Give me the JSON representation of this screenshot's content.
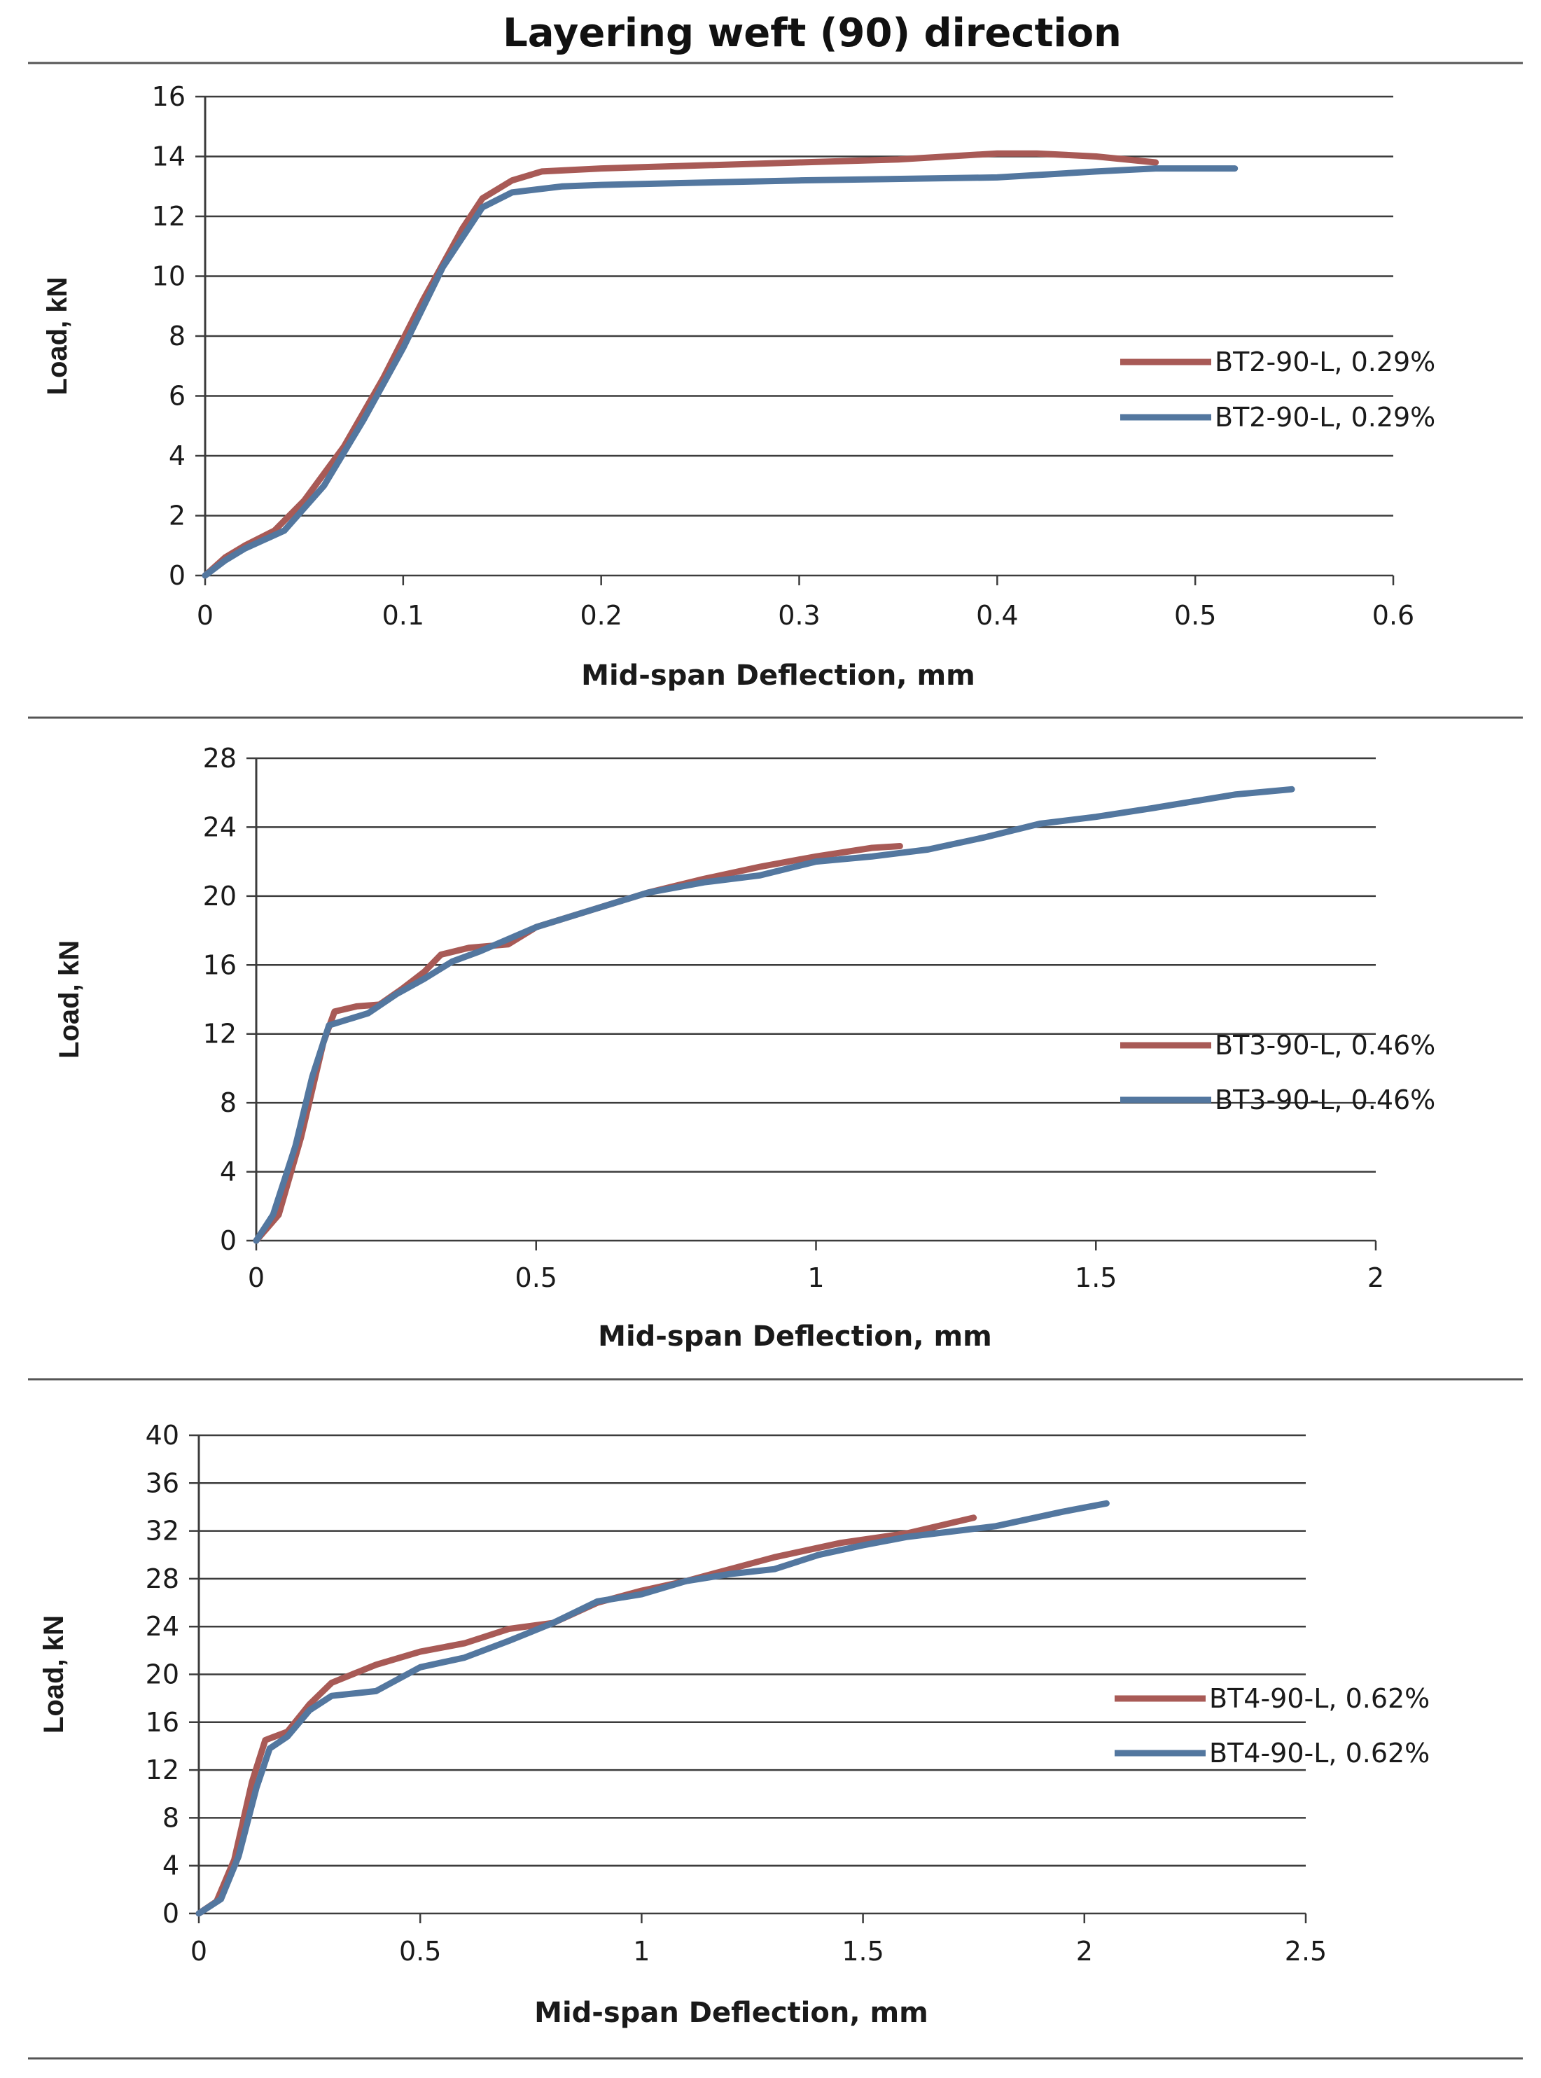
{
  "title": "Layering weft (90) direction",
  "colors": {
    "series1": "#a85a56",
    "series2": "#53779f",
    "grid": "#3c3c3c",
    "divider": "#555555"
  },
  "chart_data": [
    {
      "type": "line",
      "xlabel": "Mid-span Deflection, mm",
      "ylabel": "Load, kN",
      "xlim": [
        0,
        0.6
      ],
      "ylim": [
        0,
        16
      ],
      "xticks": [
        0,
        0.1,
        0.2,
        0.3,
        0.4,
        0.5,
        0.6
      ],
      "xtick_labels": [
        "0",
        "0.1",
        "0.2",
        "0.3",
        "0.4",
        "0.5",
        "0.6"
      ],
      "yticks": [
        0,
        2,
        4,
        6,
        8,
        10,
        12,
        14,
        16
      ],
      "ytick_labels": [
        "0",
        "2",
        "4",
        "6",
        "8",
        "10",
        "12",
        "14",
        "16"
      ],
      "legend_position": "right",
      "series": [
        {
          "name": "BT2-90-L, 0.29%",
          "color": "#a85a56",
          "points": [
            [
              0,
              0
            ],
            [
              0.01,
              0.6
            ],
            [
              0.02,
              1.0
            ],
            [
              0.035,
              1.5
            ],
            [
              0.05,
              2.5
            ],
            [
              0.07,
              4.3
            ],
            [
              0.09,
              6.6
            ],
            [
              0.11,
              9.2
            ],
            [
              0.13,
              11.6
            ],
            [
              0.14,
              12.6
            ],
            [
              0.155,
              13.2
            ],
            [
              0.17,
              13.5
            ],
            [
              0.2,
              13.6
            ],
            [
              0.25,
              13.7
            ],
            [
              0.3,
              13.8
            ],
            [
              0.35,
              13.9
            ],
            [
              0.4,
              14.1
            ],
            [
              0.42,
              14.1
            ],
            [
              0.45,
              14.0
            ],
            [
              0.48,
              13.8
            ]
          ]
        },
        {
          "name": "BT2-90-L, 0.29%",
          "color": "#53779f",
          "points": [
            [
              0,
              0
            ],
            [
              0.01,
              0.5
            ],
            [
              0.02,
              0.9
            ],
            [
              0.04,
              1.5
            ],
            [
              0.06,
              3.0
            ],
            [
              0.08,
              5.2
            ],
            [
              0.1,
              7.6
            ],
            [
              0.12,
              10.3
            ],
            [
              0.14,
              12.3
            ],
            [
              0.155,
              12.8
            ],
            [
              0.18,
              13.0
            ],
            [
              0.2,
              13.05
            ],
            [
              0.3,
              13.2
            ],
            [
              0.4,
              13.3
            ],
            [
              0.45,
              13.5
            ],
            [
              0.48,
              13.6
            ],
            [
              0.52,
              13.6
            ]
          ]
        }
      ]
    },
    {
      "type": "line",
      "xlabel": "Mid-span Deflection, mm",
      "ylabel": "Load, kN",
      "xlim": [
        0,
        2
      ],
      "ylim": [
        0,
        28
      ],
      "xticks": [
        0,
        0.5,
        1,
        1.5,
        2
      ],
      "xtick_labels": [
        "0",
        "0.5",
        "1",
        "1.5",
        "2"
      ],
      "yticks": [
        0,
        4,
        8,
        12,
        16,
        20,
        24,
        28
      ],
      "ytick_labels": [
        "0",
        "4",
        "8",
        "12",
        "16",
        "20",
        "24",
        "28"
      ],
      "legend_position": "right",
      "series": [
        {
          "name": "BT3-90-L, 0.46%",
          "color": "#a85a56",
          "points": [
            [
              0,
              0
            ],
            [
              0.04,
              1.5
            ],
            [
              0.08,
              6.0
            ],
            [
              0.12,
              11.5
            ],
            [
              0.14,
              13.3
            ],
            [
              0.18,
              13.6
            ],
            [
              0.22,
              13.7
            ],
            [
              0.26,
              14.6
            ],
            [
              0.3,
              15.6
            ],
            [
              0.33,
              16.6
            ],
            [
              0.38,
              17.0
            ],
            [
              0.45,
              17.2
            ],
            [
              0.5,
              18.2
            ],
            [
              0.6,
              19.2
            ],
            [
              0.7,
              20.2
            ],
            [
              0.8,
              21.0
            ],
            [
              0.9,
              21.7
            ],
            [
              1.0,
              22.3
            ],
            [
              1.1,
              22.8
            ],
            [
              1.15,
              22.9
            ]
          ]
        },
        {
          "name": "BT3-90-L, 0.46%",
          "color": "#53779f",
          "points": [
            [
              0,
              0
            ],
            [
              0.03,
              1.5
            ],
            [
              0.07,
              5.5
            ],
            [
              0.1,
              9.5
            ],
            [
              0.13,
              12.5
            ],
            [
              0.16,
              12.8
            ],
            [
              0.2,
              13.2
            ],
            [
              0.25,
              14.3
            ],
            [
              0.3,
              15.2
            ],
            [
              0.35,
              16.2
            ],
            [
              0.4,
              16.8
            ],
            [
              0.5,
              18.2
            ],
            [
              0.6,
              19.2
            ],
            [
              0.7,
              20.2
            ],
            [
              0.8,
              20.8
            ],
            [
              0.9,
              21.2
            ],
            [
              1.0,
              22.0
            ],
            [
              1.1,
              22.3
            ],
            [
              1.2,
              22.7
            ],
            [
              1.3,
              23.4
            ],
            [
              1.4,
              24.2
            ],
            [
              1.5,
              24.6
            ],
            [
              1.6,
              25.1
            ],
            [
              1.75,
              25.9
            ],
            [
              1.85,
              26.2
            ]
          ]
        }
      ]
    },
    {
      "type": "line",
      "xlabel": "Mid-span Deflection, mm",
      "ylabel": "Load, kN",
      "xlim": [
        0,
        2.5
      ],
      "ylim": [
        0,
        40
      ],
      "xticks": [
        0,
        0.5,
        1,
        1.5,
        2,
        2.5
      ],
      "xtick_labels": [
        "0",
        "0.5",
        "1",
        "1.5",
        "2",
        "2.5"
      ],
      "yticks": [
        0,
        4,
        8,
        12,
        16,
        20,
        24,
        28,
        32,
        36,
        40
      ],
      "ytick_labels": [
        "0",
        "4",
        "8",
        "12",
        "16",
        "20",
        "24",
        "28",
        "32",
        "36",
        "40"
      ],
      "legend_position": "right",
      "series": [
        {
          "name": "BT4-90-L, 0.62%",
          "color": "#a85a56",
          "points": [
            [
              0,
              0
            ],
            [
              0.04,
              1.0
            ],
            [
              0.08,
              4.5
            ],
            [
              0.12,
              11.0
            ],
            [
              0.15,
              14.5
            ],
            [
              0.2,
              15.2
            ],
            [
              0.25,
              17.5
            ],
            [
              0.3,
              19.3
            ],
            [
              0.4,
              20.8
            ],
            [
              0.5,
              21.9
            ],
            [
              0.6,
              22.6
            ],
            [
              0.7,
              23.8
            ],
            [
              0.8,
              24.3
            ],
            [
              0.9,
              26.0
            ],
            [
              1.0,
              27.0
            ],
            [
              1.1,
              27.8
            ],
            [
              1.2,
              28.8
            ],
            [
              1.3,
              29.8
            ],
            [
              1.45,
              31.0
            ],
            [
              1.6,
              31.8
            ],
            [
              1.75,
              33.1
            ]
          ]
        },
        {
          "name": "BT4-90-L, 0.62%",
          "color": "#53779f",
          "points": [
            [
              0,
              0
            ],
            [
              0.05,
              1.2
            ],
            [
              0.09,
              4.8
            ],
            [
              0.13,
              10.5
            ],
            [
              0.16,
              13.8
            ],
            [
              0.2,
              14.8
            ],
            [
              0.25,
              17.0
            ],
            [
              0.3,
              18.2
            ],
            [
              0.4,
              18.6
            ],
            [
              0.5,
              20.6
            ],
            [
              0.6,
              21.4
            ],
            [
              0.7,
              22.8
            ],
            [
              0.8,
              24.3
            ],
            [
              0.9,
              26.1
            ],
            [
              1.0,
              26.7
            ],
            [
              1.1,
              27.8
            ],
            [
              1.2,
              28.4
            ],
            [
              1.3,
              28.8
            ],
            [
              1.4,
              30.0
            ],
            [
              1.5,
              30.8
            ],
            [
              1.6,
              31.5
            ],
            [
              1.8,
              32.4
            ],
            [
              1.95,
              33.6
            ],
            [
              2.05,
              34.3
            ]
          ]
        }
      ]
    }
  ]
}
